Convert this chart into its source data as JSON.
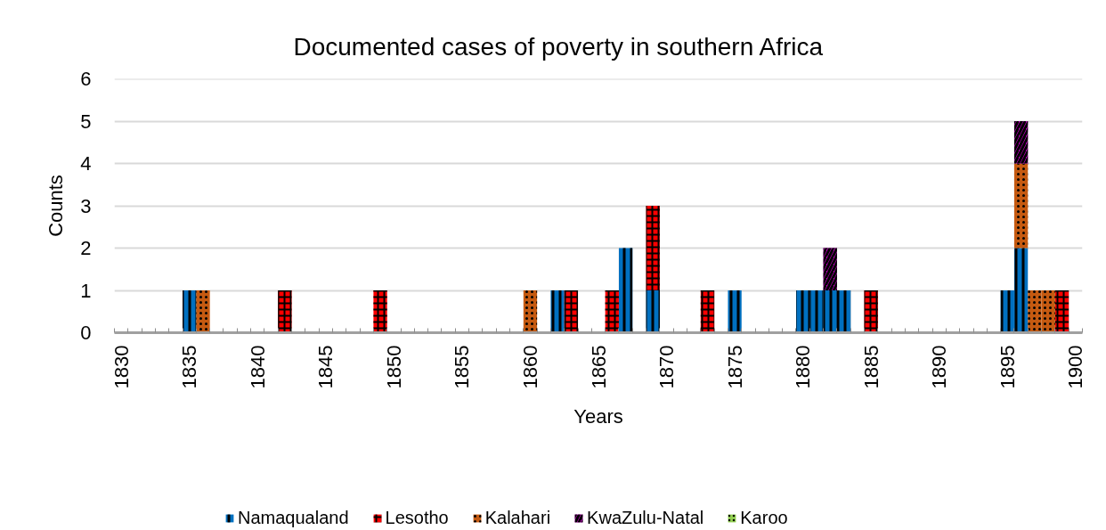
{
  "chart_data": {
    "type": "bar",
    "title": "Documented cases of poverty in southern Africa",
    "xlabel": "Years",
    "ylabel": "Counts",
    "categories": [
      "1830",
      null,
      null,
      null,
      null,
      "1835",
      null,
      null,
      null,
      null,
      "1840",
      null,
      null,
      null,
      null,
      "1845",
      null,
      null,
      null,
      null,
      "1850",
      null,
      null,
      null,
      null,
      "1855",
      null,
      null,
      null,
      null,
      "1860",
      null,
      null,
      null,
      null,
      "1865",
      null,
      null,
      null,
      null,
      "1870",
      null,
      null,
      null,
      null,
      "1875",
      null,
      null,
      null,
      null,
      "1880",
      null,
      null,
      null,
      null,
      "1885",
      null,
      null,
      null,
      null,
      "1890",
      null,
      null,
      null,
      null,
      "1895",
      null,
      null,
      null,
      null,
      "1900"
    ],
    "series": [
      {
        "name": "Namaqualand",
        "color": "#0070c0",
        "values": [
          0,
          0,
          0,
          0,
          0,
          1,
          0,
          0,
          0,
          0,
          0,
          0,
          0,
          0,
          0,
          0,
          0,
          0,
          0,
          0,
          0,
          0,
          0,
          0,
          0,
          0,
          0,
          0,
          0,
          0,
          0,
          0,
          1,
          0,
          0,
          0,
          0,
          2,
          0,
          1,
          0,
          0,
          0,
          0,
          0,
          1,
          0,
          0,
          0,
          0,
          1,
          1,
          1,
          1,
          0,
          0,
          0,
          0,
          0,
          0,
          0,
          0,
          0,
          0,
          0,
          1,
          2,
          0,
          0,
          0,
          0
        ]
      },
      {
        "name": "Lesotho",
        "color": "#ff0000",
        "values": [
          0,
          0,
          0,
          0,
          0,
          0,
          0,
          0,
          0,
          0,
          0,
          0,
          1,
          0,
          0,
          0,
          0,
          0,
          0,
          1,
          0,
          0,
          0,
          0,
          0,
          0,
          0,
          0,
          0,
          0,
          0,
          0,
          0,
          1,
          0,
          0,
          1,
          0,
          0,
          2,
          0,
          0,
          0,
          1,
          0,
          0,
          0,
          0,
          0,
          0,
          0,
          0,
          0,
          0,
          0,
          1,
          0,
          0,
          0,
          0,
          0,
          0,
          0,
          0,
          0,
          0,
          0,
          0,
          0,
          1,
          0
        ]
      },
      {
        "name": "Kalahari",
        "color": "#c55a11",
        "values": [
          0,
          0,
          0,
          0,
          0,
          0,
          1,
          0,
          0,
          0,
          0,
          0,
          0,
          0,
          0,
          0,
          0,
          0,
          0,
          0,
          0,
          0,
          0,
          0,
          0,
          0,
          0,
          0,
          0,
          0,
          1,
          0,
          0,
          0,
          0,
          0,
          0,
          0,
          0,
          0,
          0,
          0,
          0,
          0,
          0,
          0,
          0,
          0,
          0,
          0,
          0,
          0,
          0,
          0,
          0,
          0,
          0,
          0,
          0,
          0,
          0,
          0,
          0,
          0,
          0,
          0,
          2,
          1,
          1,
          0,
          0
        ]
      },
      {
        "name": "KwaZulu-Natal",
        "color": "#cc00cc",
        "values": [
          0,
          0,
          0,
          0,
          0,
          0,
          0,
          0,
          0,
          0,
          0,
          0,
          0,
          0,
          0,
          0,
          0,
          0,
          0,
          0,
          0,
          0,
          0,
          0,
          0,
          0,
          0,
          0,
          0,
          0,
          0,
          0,
          0,
          0,
          0,
          0,
          0,
          0,
          0,
          0,
          0,
          0,
          0,
          0,
          0,
          0,
          0,
          0,
          0,
          0,
          0,
          0,
          1,
          0,
          0,
          0,
          0,
          0,
          0,
          0,
          0,
          0,
          0,
          0,
          0,
          0,
          1,
          0,
          0,
          0,
          0
        ]
      },
      {
        "name": "Karoo",
        "color": "#92d050",
        "values": [
          0,
          0,
          0,
          0,
          0,
          0,
          0,
          0,
          0,
          0,
          0,
          0,
          0,
          0,
          0,
          0,
          0,
          0,
          0,
          0,
          0,
          0,
          0,
          0,
          0,
          0,
          0,
          0,
          0,
          0,
          0,
          0,
          0,
          0,
          0,
          0,
          0,
          0,
          0,
          0,
          0,
          0,
          0,
          0,
          0,
          0,
          0,
          0,
          0,
          0,
          0,
          0,
          0,
          0,
          0,
          0,
          0,
          0,
          0,
          0,
          0,
          0,
          0,
          0,
          0,
          0,
          0,
          0,
          0,
          0,
          0
        ]
      }
    ],
    "stacked": true,
    "ylim": [
      0,
      6
    ],
    "yticks": [
      0,
      1,
      2,
      3,
      4,
      5,
      6
    ],
    "grid": "y",
    "legend": "bottom"
  }
}
